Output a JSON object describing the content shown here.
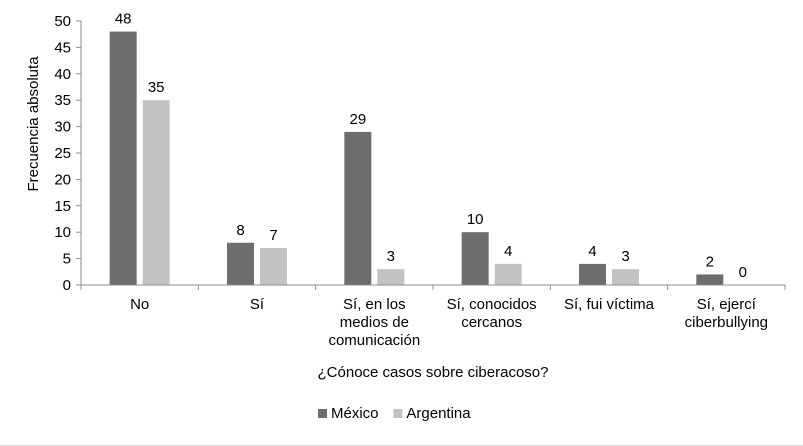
{
  "chart_data": {
    "type": "bar",
    "xlabel": "¿Cónoce casos sobre ciberacoso?",
    "ylabel": "Frecuencia absoluta",
    "ylim": [
      0,
      50
    ],
    "yticks": [
      0,
      5,
      10,
      15,
      20,
      25,
      30,
      35,
      40,
      45,
      50
    ],
    "grid": false,
    "legend_position": "bottom",
    "categories": [
      [
        "No"
      ],
      [
        "Sí"
      ],
      [
        "Sí, en los",
        "medios de",
        "comunicación"
      ],
      [
        "Sí, conocidos",
        "cercanos"
      ],
      [
        "Sí, fui víctima"
      ],
      [
        "Sí, ejercí",
        "ciberbullying"
      ]
    ],
    "series": [
      {
        "name": "México",
        "color": "#6e6d6d",
        "values": [
          48,
          8,
          29,
          10,
          4,
          2
        ]
      },
      {
        "name": "Argentina",
        "color": "#c2c2c2",
        "values": [
          35,
          7,
          3,
          4,
          3,
          0
        ]
      }
    ]
  }
}
